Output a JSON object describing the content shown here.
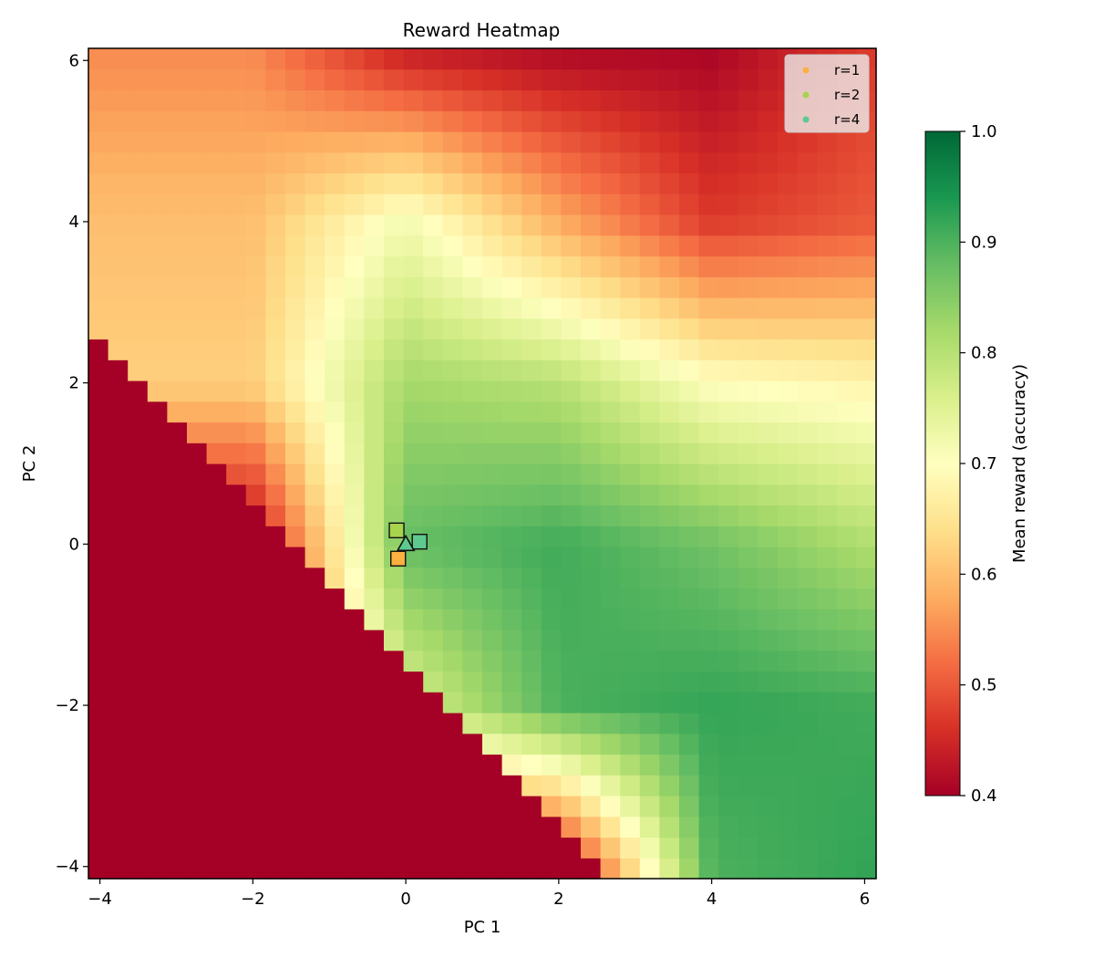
{
  "chart_data": {
    "type": "heatmap",
    "title": "Reward Heatmap",
    "xlabel": "PC 1",
    "ylabel": "PC 2",
    "xlim": [
      -4.15,
      6.15
    ],
    "ylim": [
      -4.15,
      6.15
    ],
    "x_ticks": [
      -4,
      -2,
      0,
      2,
      4,
      6
    ],
    "y_ticks": [
      -4,
      -2,
      0,
      2,
      4,
      6
    ],
    "x_tick_labels": [
      "−4",
      "−2",
      "0",
      "2",
      "4",
      "6"
    ],
    "y_tick_labels": [
      "−4",
      "−2",
      "0",
      "2",
      "4",
      "6"
    ],
    "grid_cells": [
      40,
      40
    ],
    "grid_extent": [
      -4.15,
      6.15,
      -4.15,
      6.15
    ],
    "colormap": "RdYlGn",
    "colorbar": {
      "label": "Mean reward (accuracy)",
      "min": 0.4,
      "max": 1.0,
      "ticks": [
        0.4,
        0.5,
        0.6,
        0.7,
        0.8,
        0.9,
        1.0
      ],
      "tick_labels": [
        "0.4",
        "0.5",
        "0.6",
        "0.7",
        "0.8",
        "0.9",
        "1.0"
      ]
    },
    "field_model": {
      "floor": 0.4,
      "valid_region": "PC2 >= -1.0*PC1 - 1.5 and PC2 <= 6.2",
      "region_grid_pc1": [
        -2.0,
        0.0,
        2.0,
        4.0,
        6.0
      ],
      "region_grid_pc2": [
        -4.0,
        -2.0,
        0.0,
        2.0,
        4.0,
        6.0
      ],
      "region_values": [
        [
          0.4,
          0.4,
          0.4,
          0.62,
          0.6,
          0.55
        ],
        [
          0.4,
          0.75,
          0.88,
          0.82,
          0.72,
          0.45
        ],
        [
          0.4,
          0.9,
          0.91,
          0.8,
          0.58,
          0.42
        ],
        [
          0.9,
          0.92,
          0.87,
          0.7,
          0.47,
          0.41
        ],
        [
          0.92,
          0.91,
          0.81,
          0.68,
          0.5,
          0.47
        ]
      ]
    },
    "markers": [
      {
        "label": "r=1",
        "x": -0.1,
        "y": -0.18,
        "shape": "square",
        "color": "#fbb040",
        "value": 0.62
      },
      {
        "label": "r=2",
        "x": -0.12,
        "y": 0.17,
        "shape": "square",
        "color": "#a6d44d",
        "value": 0.79
      },
      {
        "label": "r=4",
        "x": 0.18,
        "y": 0.03,
        "shape": "square",
        "color": "#5ec98f",
        "value": 0.88
      },
      {
        "label": "",
        "x": 0.0,
        "y": 0.0,
        "shape": "triangle",
        "color": "#5ec98f",
        "value": 0.88
      }
    ],
    "legend": {
      "placement": "top-right",
      "entries": [
        {
          "label": "r=1",
          "color": "#fbb040"
        },
        {
          "label": "r=2",
          "color": "#a6d44d"
        },
        {
          "label": "r=4",
          "color": "#5ec98f"
        }
      ]
    }
  }
}
